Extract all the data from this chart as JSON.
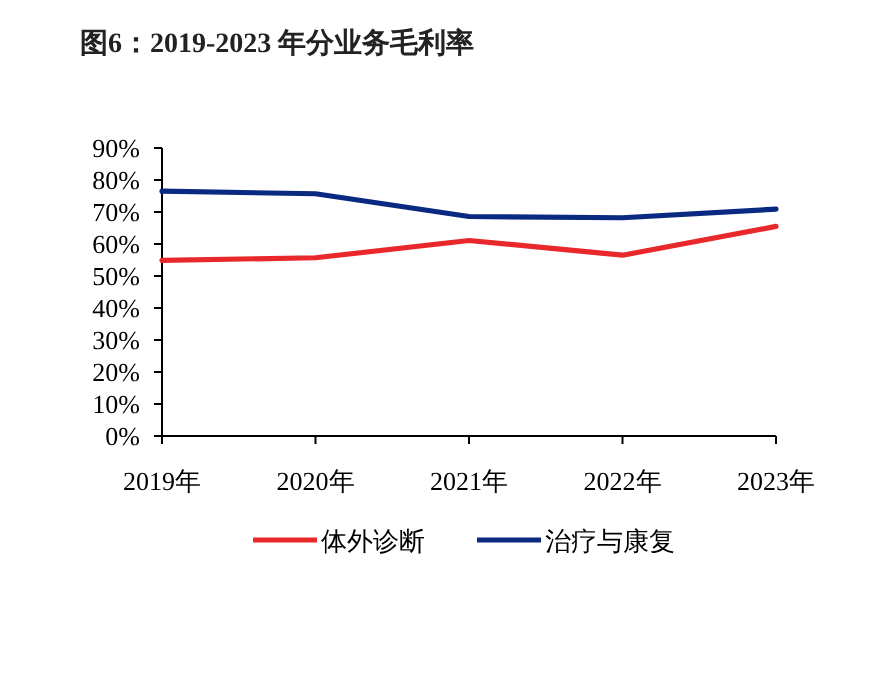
{
  "chart_data": {
    "type": "line",
    "title": "图6：2019-2023 年分业务毛利率",
    "categories": [
      "2019年",
      "2020年",
      "2021年",
      "2022年",
      "2023年"
    ],
    "series": [
      {
        "name": "体外诊断",
        "color": "#e8282b",
        "values": [
          54.9,
          55.7,
          61.1,
          56.5,
          65.5
        ]
      },
      {
        "name": "治疗与康复",
        "color": "#0a2a82",
        "values": [
          76.5,
          75.7,
          68.6,
          68.2,
          70.9
        ]
      }
    ],
    "ylim": [
      0,
      90
    ],
    "yticks": [
      {
        "value": 0,
        "label": "0%"
      },
      {
        "value": 10,
        "label": "10%"
      },
      {
        "value": 20,
        "label": "20%"
      },
      {
        "value": 30,
        "label": "30%"
      },
      {
        "value": 40,
        "label": "40%"
      },
      {
        "value": 50,
        "label": "50%"
      },
      {
        "value": 60,
        "label": "60%"
      },
      {
        "value": 70,
        "label": "70%"
      },
      {
        "value": 80,
        "label": "80%"
      },
      {
        "value": 90,
        "label": "90%"
      }
    ],
    "grid": false,
    "legend": "bottom",
    "marker": "none",
    "line_style": "solid"
  }
}
